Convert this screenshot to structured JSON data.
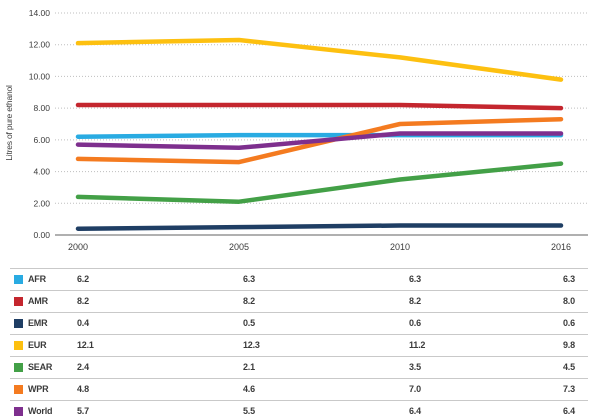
{
  "chart_data": {
    "type": "line",
    "title": "",
    "ylabel": "Litres of pure ethanol",
    "xlabel": "",
    "categories": [
      "2000",
      "2005",
      "2010",
      "2016"
    ],
    "yticks": [
      "0.00",
      "2.00",
      "4.00",
      "6.00",
      "8.00",
      "10.00",
      "12.00",
      "14.00"
    ],
    "ylim": [
      0,
      14
    ],
    "ytick_step": 2,
    "grid": true,
    "legend_position": "table-below",
    "series": [
      {
        "name": "AFR",
        "color": "#29ABE2",
        "values": [
          6.2,
          6.3,
          6.3,
          6.3
        ]
      },
      {
        "name": "AMR",
        "color": "#C4262E",
        "values": [
          8.2,
          8.2,
          8.2,
          8.0
        ]
      },
      {
        "name": "EMR",
        "color": "#1F3E64",
        "values": [
          0.4,
          0.5,
          0.6,
          0.6
        ]
      },
      {
        "name": "EUR",
        "color": "#FDC010",
        "values": [
          12.1,
          12.3,
          11.2,
          9.8
        ]
      },
      {
        "name": "SEAR",
        "color": "#43A047",
        "values": [
          2.4,
          2.1,
          3.5,
          4.5
        ]
      },
      {
        "name": "WPR",
        "color": "#F47B20",
        "values": [
          4.8,
          4.6,
          7.0,
          7.3
        ]
      },
      {
        "name": "World",
        "color": "#7E2F8E",
        "values": [
          5.7,
          5.5,
          6.4,
          6.4
        ]
      }
    ],
    "colors": {
      "gridline": "#bfbfbf",
      "axis_line": "#808080",
      "text": "#3b3b3b",
      "table_border": "#c9c9c9"
    }
  }
}
